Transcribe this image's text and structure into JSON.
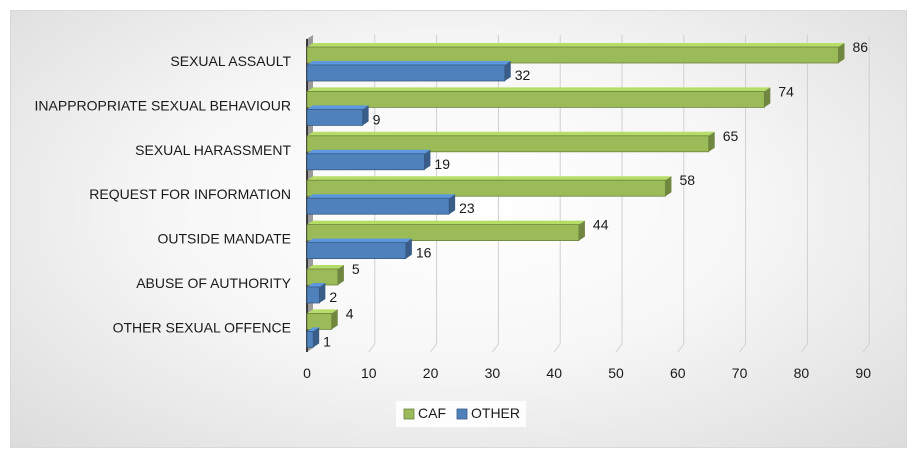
{
  "chart_data": {
    "type": "bar",
    "orientation": "horizontal",
    "categories": [
      "SEXUAL ASSAULT",
      "INAPPROPRIATE SEXUAL BEHAVIOUR",
      "SEXUAL HARASSMENT",
      "REQUEST FOR INFORMATION",
      "OUTSIDE MANDATE",
      "ABUSE OF AUTHORITY",
      "OTHER SEXUAL OFFENCE"
    ],
    "series": [
      {
        "name": "CAF",
        "values": [
          86,
          74,
          65,
          58,
          44,
          5,
          4
        ],
        "color": "#9bbb59"
      },
      {
        "name": "OTHER",
        "values": [
          32,
          9,
          19,
          23,
          16,
          2,
          1
        ],
        "color": "#4f81bd"
      }
    ],
    "x_ticks": [
      0,
      10,
      20,
      30,
      40,
      50,
      60,
      70,
      80,
      90
    ],
    "xlim": [
      0,
      90
    ],
    "title": "",
    "xlabel": "",
    "ylabel": "",
    "grid": true,
    "legend_position": "bottom",
    "style": "3d"
  }
}
